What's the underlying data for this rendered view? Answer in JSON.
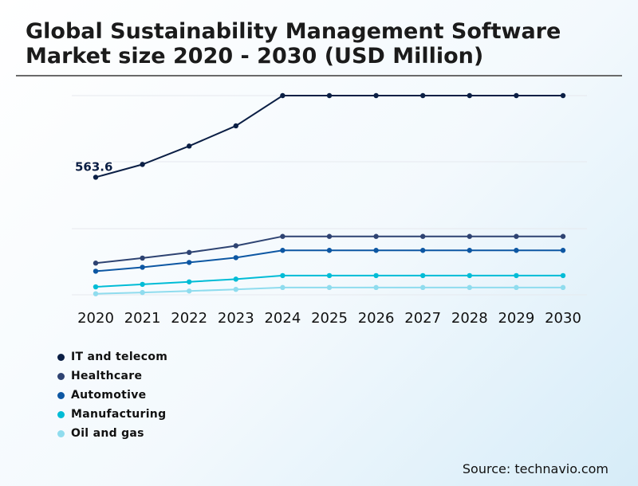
{
  "title": "Global Sustainability Management Software Market size 2020 - 2030 (USD Million)",
  "source": "Source: technavio.com",
  "chart_data": {
    "type": "line",
    "title": "Global Sustainability Management Software Market size 2020 - 2030 (USD Million)",
    "xlabel": "",
    "ylabel": "",
    "grid": true,
    "legend_position": "bottom-left",
    "x": [
      "2020",
      "2021",
      "2022",
      "2023",
      "2024",
      "2025",
      "2026",
      "2027",
      "2028",
      "2029",
      "2030"
    ],
    "ylim": [
      0,
      1300
    ],
    "annotations": [
      {
        "series": "IT and telecom",
        "x": "2020",
        "text": "563.6"
      }
    ],
    "series": [
      {
        "name": "IT and telecom",
        "color": "#0b1f45",
        "values": [
          563.6,
          625,
          713,
          810,
          955,
          955,
          955,
          955,
          955,
          955,
          955
        ]
      },
      {
        "name": "Healthcare",
        "color": "#2e4372",
        "values": [
          152,
          176,
          203,
          235,
          280,
          280,
          280,
          280,
          280,
          280,
          280
        ]
      },
      {
        "name": "Automotive",
        "color": "#0d57a3",
        "values": [
          113,
          132,
          155,
          178,
          213,
          213,
          213,
          213,
          213,
          213,
          213
        ]
      },
      {
        "name": "Manufacturing",
        "color": "#00bcd6",
        "values": [
          38,
          50,
          62,
          75,
          92,
          92,
          92,
          92,
          92,
          92,
          92
        ]
      },
      {
        "name": "Oil and gas",
        "color": "#8fdcee",
        "values": [
          5,
          11,
          18,
          26,
          35,
          35,
          35,
          35,
          35,
          35,
          35
        ]
      }
    ]
  }
}
